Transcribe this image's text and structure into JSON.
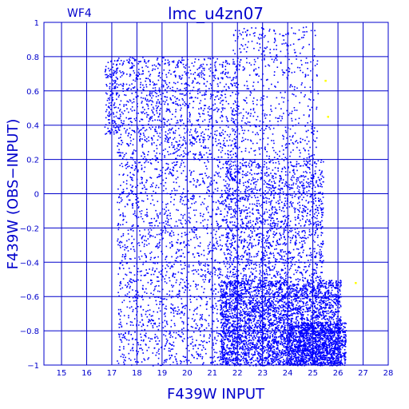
{
  "chart_data": {
    "type": "scatter",
    "title": "lmc_u4zn07",
    "corner_label": "WF4",
    "xlabel": "F439W INPUT",
    "ylabel": "F439W (OBS−INPUT)",
    "xlim": [
      14.3,
      28
    ],
    "ylim": [
      -1,
      1
    ],
    "xticks": [
      "15",
      "16",
      "17",
      "18",
      "19",
      "20",
      "21",
      "22",
      "23",
      "24",
      "25",
      "26",
      "27",
      "28"
    ],
    "yticks": [
      "1",
      "0.8",
      "0.6",
      "0.4",
      "0.2",
      "0",
      "−0.2",
      "−0.4",
      "−0.6",
      "−0.8",
      "−1"
    ],
    "grid": true,
    "colors": {
      "axis": "#0000cc",
      "points": "#0000ff",
      "highlight": "#ffff00"
    },
    "bands": [
      {
        "x_range": [
          16.7,
          17.2
        ],
        "y_range": [
          0.35,
          0.78
        ],
        "count": 150
      },
      {
        "x_range": [
          17.2,
          22.0
        ],
        "y_range": [
          0.2,
          0.8
        ],
        "count": 1200
      },
      {
        "x_range": [
          17.2,
          22.0
        ],
        "y_range": [
          -1.0,
          0.2
        ],
        "count": 1800
      },
      {
        "x_range": [
          21.8,
          25.2
        ],
        "y_range": [
          0.2,
          0.98
        ],
        "count": 550
      },
      {
        "x_range": [
          21.5,
          25.4
        ],
        "y_range": [
          -0.5,
          0.2
        ],
        "count": 1600
      },
      {
        "x_range": [
          21.3,
          26.1
        ],
        "y_range": [
          -1.0,
          -0.5
        ],
        "count": 3800
      },
      {
        "x_range": [
          24.0,
          26.3
        ],
        "y_range": [
          -1.0,
          -0.75
        ],
        "count": 900
      }
    ],
    "highlight_points": [
      {
        "x": 25.5,
        "y": 0.66
      },
      {
        "x": 25.6,
        "y": 0.45
      },
      {
        "x": 26.7,
        "y": -0.52
      }
    ]
  }
}
